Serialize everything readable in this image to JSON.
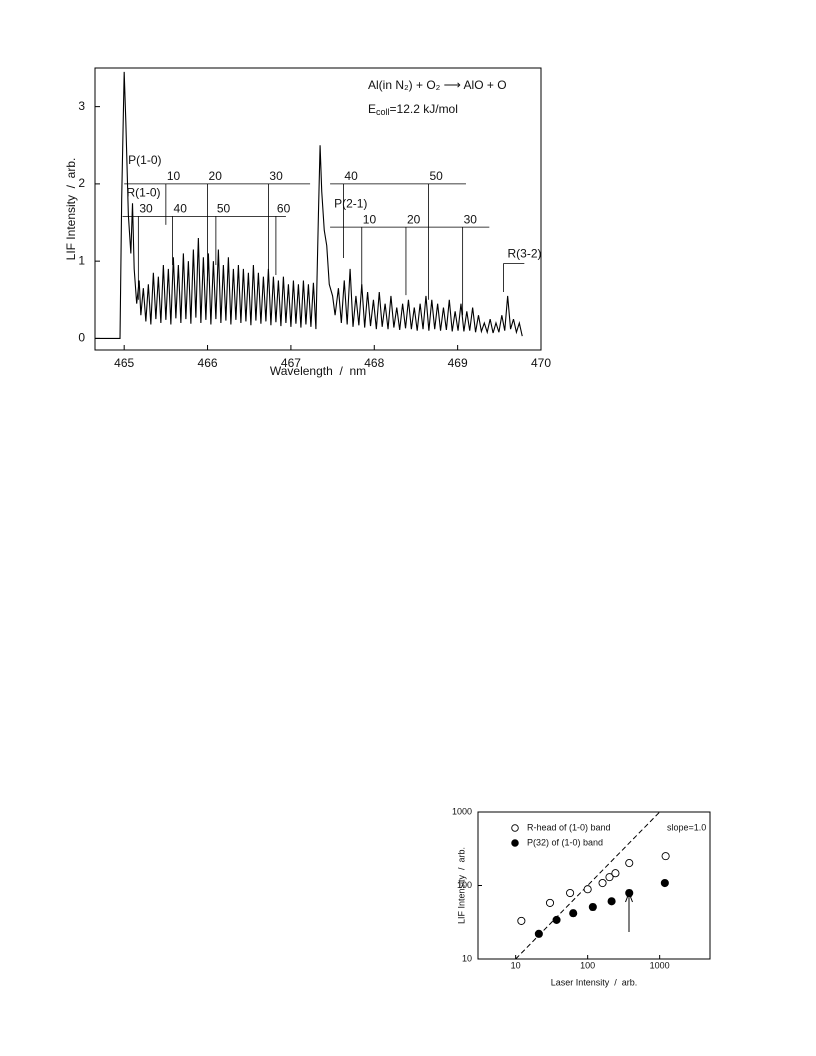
{
  "chart_data": [
    {
      "type": "line",
      "annotation": {
        "reaction": "Al(in N₂) + O₂ ⟶ AlO + O",
        "energy": {
          "symbol": "E",
          "subscript": "coll",
          "text": "=12.2 kJ/mol"
        }
      },
      "xlabel": "Wavelength  /  nm",
      "ylabel": "LIF Intensity  /  arb.",
      "xlim": [
        464.65,
        470
      ],
      "ylim": [
        -0.15,
        3.5
      ],
      "xticks": [
        465,
        466,
        467,
        468,
        469,
        470
      ],
      "yticks": [
        0,
        1,
        2,
        3
      ],
      "color": "#000000",
      "x": [
        464.65,
        464.95,
        464.97,
        465.0,
        465.02,
        465.05,
        465.08,
        465.1,
        465.12,
        465.15,
        465.18,
        465.2,
        465.23,
        465.26,
        465.29,
        465.32,
        465.35,
        465.38,
        465.41,
        465.44,
        465.47,
        465.5,
        465.53,
        465.56,
        465.59,
        465.62,
        465.65,
        465.68,
        465.71,
        465.74,
        465.77,
        465.8,
        465.83,
        465.86,
        465.89,
        465.92,
        465.95,
        465.98,
        466.01,
        466.04,
        466.07,
        466.1,
        466.13,
        466.16,
        466.19,
        466.22,
        466.25,
        466.28,
        466.31,
        466.34,
        466.37,
        466.4,
        466.43,
        466.46,
        466.49,
        466.52,
        466.55,
        466.58,
        466.61,
        466.64,
        466.67,
        466.7,
        466.73,
        466.76,
        466.79,
        466.82,
        466.85,
        466.88,
        466.91,
        466.94,
        466.97,
        467.0,
        467.03,
        467.06,
        467.09,
        467.12,
        467.15,
        467.18,
        467.21,
        467.24,
        467.27,
        467.3,
        467.33,
        467.35,
        467.37,
        467.4,
        467.43,
        467.46,
        467.5,
        467.53,
        467.57,
        467.605,
        467.64,
        467.675,
        467.71,
        467.745,
        467.78,
        467.815,
        467.85,
        467.885,
        467.92,
        467.955,
        467.99,
        468.025,
        468.06,
        468.095,
        468.13,
        468.165,
        468.2,
        468.235,
        468.27,
        468.305,
        468.34,
        468.375,
        468.41,
        468.445,
        468.48,
        468.515,
        468.55,
        468.585,
        468.62,
        468.655,
        468.69,
        468.725,
        468.76,
        468.795,
        468.83,
        468.865,
        468.9,
        468.935,
        468.97,
        469.005,
        469.04,
        469.075,
        469.11,
        469.145,
        469.18,
        469.215,
        469.25,
        469.285,
        469.32,
        469.355,
        469.39,
        469.425,
        469.46,
        469.495,
        469.53,
        469.565,
        469.6,
        469.635,
        469.67,
        469.705,
        469.74,
        469.775
      ],
      "values": [
        0,
        0,
        1.8,
        3.45,
        2.8,
        1.6,
        1.1,
        1.75,
        0.9,
        0.45,
        0.75,
        0.3,
        0.65,
        0.22,
        0.7,
        0.18,
        0.85,
        0.25,
        0.8,
        0.2,
        0.95,
        0.24,
        0.9,
        0.18,
        1.05,
        0.26,
        0.95,
        0.2,
        1.1,
        0.25,
        1.0,
        0.19,
        1.15,
        0.27,
        1.3,
        0.2,
        1.05,
        0.24,
        1.1,
        0.18,
        1.0,
        0.25,
        1.15,
        0.2,
        0.95,
        0.23,
        1.05,
        0.18,
        0.9,
        0.24,
        0.95,
        0.2,
        0.9,
        0.22,
        0.85,
        0.17,
        0.95,
        0.23,
        0.85,
        0.19,
        0.8,
        0.22,
        0.9,
        0.17,
        0.8,
        0.21,
        0.75,
        0.16,
        0.8,
        0.2,
        0.7,
        0.15,
        0.75,
        0.19,
        0.7,
        0.14,
        0.75,
        0.18,
        0.7,
        0.15,
        0.72,
        0.12,
        1.6,
        2.5,
        1.9,
        1.4,
        1.2,
        0.7,
        0.55,
        0.3,
        0.65,
        0.2,
        0.75,
        0.18,
        0.9,
        0.15,
        0.55,
        0.17,
        0.7,
        0.14,
        0.6,
        0.16,
        0.5,
        0.12,
        0.6,
        0.15,
        0.45,
        0.12,
        0.55,
        0.14,
        0.4,
        0.11,
        0.45,
        0.13,
        0.5,
        0.12,
        0.4,
        0.1,
        0.45,
        0.12,
        0.55,
        0.1,
        0.5,
        0.12,
        0.45,
        0.1,
        0.4,
        0.11,
        0.5,
        0.09,
        0.35,
        0.1,
        0.45,
        0.09,
        0.35,
        0.1,
        0.4,
        0.08,
        0.3,
        0.09,
        0.2,
        0.08,
        0.25,
        0.07,
        0.2,
        0.08,
        0.3,
        0.1,
        0.55,
        0.12,
        0.25,
        0.08,
        0.2,
        0.03
      ],
      "assignments": [
        {
          "name": "P(1-0)",
          "y": 2.0,
          "segments": [
            [
              465.0,
              467.23
            ],
            [
              467.47,
              469.1
            ]
          ],
          "lines": [
            {
              "label": "10",
              "x": 465.5,
              "bottom": 1.47
            },
            {
              "label": "20",
              "x": 466.0,
              "bottom": 0.75
            },
            {
              "label": "30",
              "x": 466.73,
              "bottom": 0.8
            },
            {
              "label": "40",
              "x": 467.63,
              "bottom": 1.04
            },
            {
              "label": "50",
              "x": 468.65,
              "bottom": 0.5
            }
          ]
        },
        {
          "name": "R(1-0)",
          "y": 1.58,
          "segments": [
            [
              464.98,
              466.94
            ]
          ],
          "lines": [
            {
              "label": "30",
              "x": 465.17,
              "bottom": 0.5
            },
            {
              "label": "40",
              "x": 465.58,
              "bottom": 0.95
            },
            {
              "label": "50",
              "x": 466.1,
              "bottom": 0.95
            },
            {
              "label": "60",
              "x": 466.82,
              "bottom": 0.82
            }
          ]
        },
        {
          "name": "P(2-1)",
          "y": 1.44,
          "segments": [
            [
              467.47,
              469.38
            ]
          ],
          "lines": [
            {
              "label": "10",
              "x": 467.85,
              "bottom": 0.62
            },
            {
              "label": "20",
              "x": 468.38,
              "bottom": 0.56
            },
            {
              "label": "30",
              "x": 469.06,
              "bottom": 0.3
            }
          ]
        },
        {
          "name": "R(3-2)",
          "y": 0.97,
          "segments": [
            [
              469.55,
              469.8
            ]
          ],
          "lines": [
            {
              "label": "",
              "x": 469.55,
              "bottom": 0.6
            }
          ]
        }
      ]
    },
    {
      "type": "scatter",
      "xlabel": "Laser Intensity  /  arb.",
      "ylabel": "LIF Intensity  /  arb.",
      "xscale": "log",
      "yscale": "log",
      "xlim": [
        3,
        5000
      ],
      "ylim": [
        10,
        1000
      ],
      "xticks": [
        10,
        100,
        1000
      ],
      "yticks": [
        10,
        100,
        1000
      ],
      "legend": "upper left",
      "reference_line": {
        "label": "slope=1.0",
        "x": [
          10,
          1000
        ],
        "y": [
          10,
          1000
        ]
      },
      "series": [
        {
          "name": "R-head of (1-0) band",
          "marker": "open",
          "color": "#000000",
          "x": [
            12,
            30,
            57,
            100,
            161,
            201,
            243,
            378,
            1210
          ],
          "values": [
            33,
            58,
            79,
            89,
            108,
            130,
            147,
            202,
            251
          ]
        },
        {
          "name": "P(32) of (1-0) band",
          "marker": "filled",
          "color": "#000000",
          "x": [
            21,
            37,
            63,
            118,
            215,
            378,
            1180
          ],
          "values": [
            22,
            34,
            42,
            51,
            61,
            79,
            108
          ],
          "errors": [
            2,
            2,
            4,
            5,
            3,
            8,
            3
          ]
        }
      ]
    }
  ]
}
